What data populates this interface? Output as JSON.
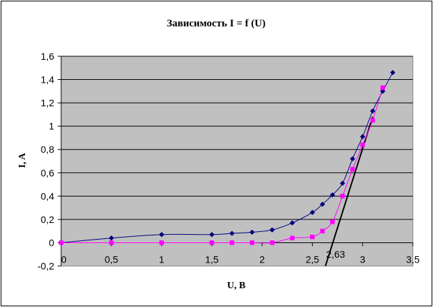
{
  "chart_data": {
    "type": "line",
    "title": "Зависимость I = f (U)",
    "xlabel": "U, B",
    "ylabel": "I, A",
    "xlim": [
      0,
      3.5
    ],
    "ylim": [
      -0.2,
      1.6
    ],
    "x_ticks": [
      {
        "value": 0,
        "label": "0"
      },
      {
        "value": 0.5,
        "label": "0,5"
      },
      {
        "value": 1,
        "label": "1"
      },
      {
        "value": 1.5,
        "label": "1,5"
      },
      {
        "value": 2,
        "label": "2"
      },
      {
        "value": 2.5,
        "label": "2,5"
      },
      {
        "value": 3,
        "label": "3"
      },
      {
        "value": 3.5,
        "label": "3,5"
      }
    ],
    "y_ticks": [
      {
        "value": -0.2,
        "label": "-0,2"
      },
      {
        "value": 0,
        "label": "0"
      },
      {
        "value": 0.2,
        "label": "0,2"
      },
      {
        "value": 0.4,
        "label": "0,4"
      },
      {
        "value": 0.6,
        "label": "0,6"
      },
      {
        "value": 0.8,
        "label": "0,8"
      },
      {
        "value": 1,
        "label": "1"
      },
      {
        "value": 1.2,
        "label": "1,2"
      },
      {
        "value": 1.4,
        "label": "1,4"
      },
      {
        "value": 1.6,
        "label": "1,6"
      }
    ],
    "grid": "horizontal",
    "plot_background": "#c0c0c0",
    "series": [
      {
        "color": "#000080",
        "marker": "diamond",
        "points": [
          {
            "x": 0,
            "y": 0
          },
          {
            "x": 0.5,
            "y": 0.04
          },
          {
            "x": 1,
            "y": 0.07
          },
          {
            "x": 1.5,
            "y": 0.07
          },
          {
            "x": 1.7,
            "y": 0.08
          },
          {
            "x": 1.9,
            "y": 0.09
          },
          {
            "x": 2.1,
            "y": 0.11
          },
          {
            "x": 2.3,
            "y": 0.17
          },
          {
            "x": 2.5,
            "y": 0.26
          },
          {
            "x": 2.6,
            "y": 0.33
          },
          {
            "x": 2.7,
            "y": 0.41
          },
          {
            "x": 2.8,
            "y": 0.51
          },
          {
            "x": 2.9,
            "y": 0.72
          },
          {
            "x": 3,
            "y": 0.91
          },
          {
            "x": 3.1,
            "y": 1.13
          },
          {
            "x": 3.2,
            "y": 1.3
          },
          {
            "x": 3.3,
            "y": 1.46
          }
        ]
      },
      {
        "color": "#ff00ff",
        "marker": "square",
        "points": [
          {
            "x": 0,
            "y": 0
          },
          {
            "x": 0.5,
            "y": 0
          },
          {
            "x": 1,
            "y": 0
          },
          {
            "x": 1.5,
            "y": 0
          },
          {
            "x": 1.7,
            "y": 0
          },
          {
            "x": 1.9,
            "y": 0
          },
          {
            "x": 2.1,
            "y": 0
          },
          {
            "x": 2.3,
            "y": 0.04
          },
          {
            "x": 2.5,
            "y": 0.05
          },
          {
            "x": 2.6,
            "y": 0.1
          },
          {
            "x": 2.7,
            "y": 0.18
          },
          {
            "x": 2.8,
            "y": 0.4
          },
          {
            "x": 2.9,
            "y": 0.63
          },
          {
            "x": 3,
            "y": 0.84
          },
          {
            "x": 3.1,
            "y": 1.05
          },
          {
            "x": 3.2,
            "y": 1.33
          }
        ]
      }
    ],
    "tangent_line": {
      "color": "#000000",
      "from": {
        "x": 2.63,
        "y": -0.2
      },
      "to": {
        "x": 3.1,
        "y": 1.08
      }
    },
    "annotations": [
      {
        "text": "2,63",
        "x": 2.63,
        "y": -0.1
      }
    ]
  }
}
